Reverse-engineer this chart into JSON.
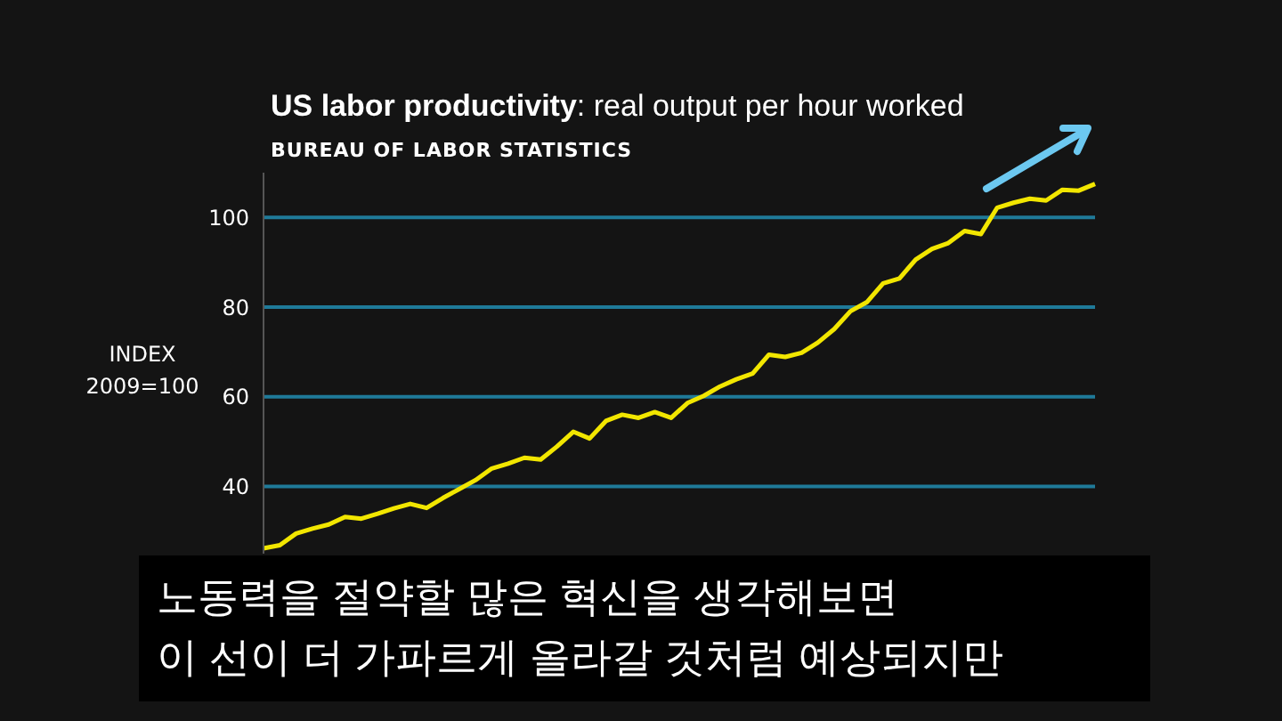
{
  "chart_data": {
    "type": "line",
    "title": "US labor productivity: real output per hour worked",
    "subtitle": "BUREAU OF LABOR STATISTICS",
    "ylabel": "INDEX 2009=100",
    "annotations": [
      "노동력을 절약할 많은 혁신을 생각해보면",
      "이 선이 더 가파르게 올라갈 것처럼 예상되지만"
    ],
    "categories": [
      null,
      null,
      null,
      null,
      null,
      null,
      null,
      null,
      null,
      null,
      null,
      null,
      null,
      null,
      null,
      null,
      null,
      null,
      null,
      null,
      null,
      null,
      null,
      null,
      null,
      null,
      null,
      null,
      null,
      null,
      null,
      null,
      null,
      null,
      null,
      null,
      null,
      null,
      null,
      null,
      null,
      null,
      null,
      null,
      null,
      null,
      null,
      null,
      null,
      null,
      null,
      null
    ],
    "series": [
      {
        "color": "#f2e600",
        "values": [
          26.2,
          26.9,
          29.5,
          30.6,
          31.5,
          33.2,
          32.8,
          33.9,
          35.1,
          36.1,
          35.2,
          37.4,
          39.4,
          41.4,
          44.0,
          45.1,
          46.4,
          46.0,
          48.9,
          52.2,
          50.7,
          54.6,
          56.0,
          55.3,
          56.6,
          55.3,
          58.6,
          60.2,
          62.3,
          63.9,
          65.2,
          69.4,
          68.9,
          69.8,
          72.1,
          75.1,
          79.1,
          81.1,
          85.3,
          86.4,
          90.6,
          93.0,
          94.3,
          97.0,
          96.3,
          102.2,
          103.3,
          104.2,
          103.8,
          106.2,
          106.0,
          107.5
        ]
      }
    ],
    "ylim": [
      25,
      110
    ],
    "yticks": [
      40,
      60,
      80,
      100
    ],
    "grid": "y",
    "tick_labels": "y",
    "marker": "none",
    "line_style": "solid",
    "legend": false
  }
}
